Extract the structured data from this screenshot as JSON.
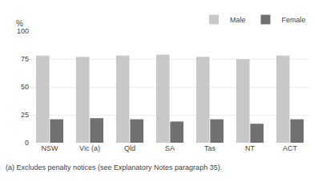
{
  "chart_data": {
    "type": "bar",
    "categories": [
      "NSW",
      "Vic (a)",
      "Qld",
      "SA",
      "Tas",
      "NT",
      "ACT"
    ],
    "series": [
      {
        "name": "Male",
        "color": "#c8c8c8",
        "values": [
          78,
          77,
          78,
          79,
          77,
          75,
          78
        ]
      },
      {
        "name": "Female",
        "color": "#707070",
        "values": [
          21,
          22,
          21,
          19,
          21,
          17,
          21
        ]
      }
    ],
    "ylabel": "%",
    "ylim": [
      0,
      100
    ],
    "yticks": [
      0,
      25,
      50,
      75,
      100
    ],
    "grid": true,
    "legend": "upper right",
    "annotations": [
      "(a) Excludes penalty notices (see Explanatory Notes paragraph 35)."
    ]
  }
}
